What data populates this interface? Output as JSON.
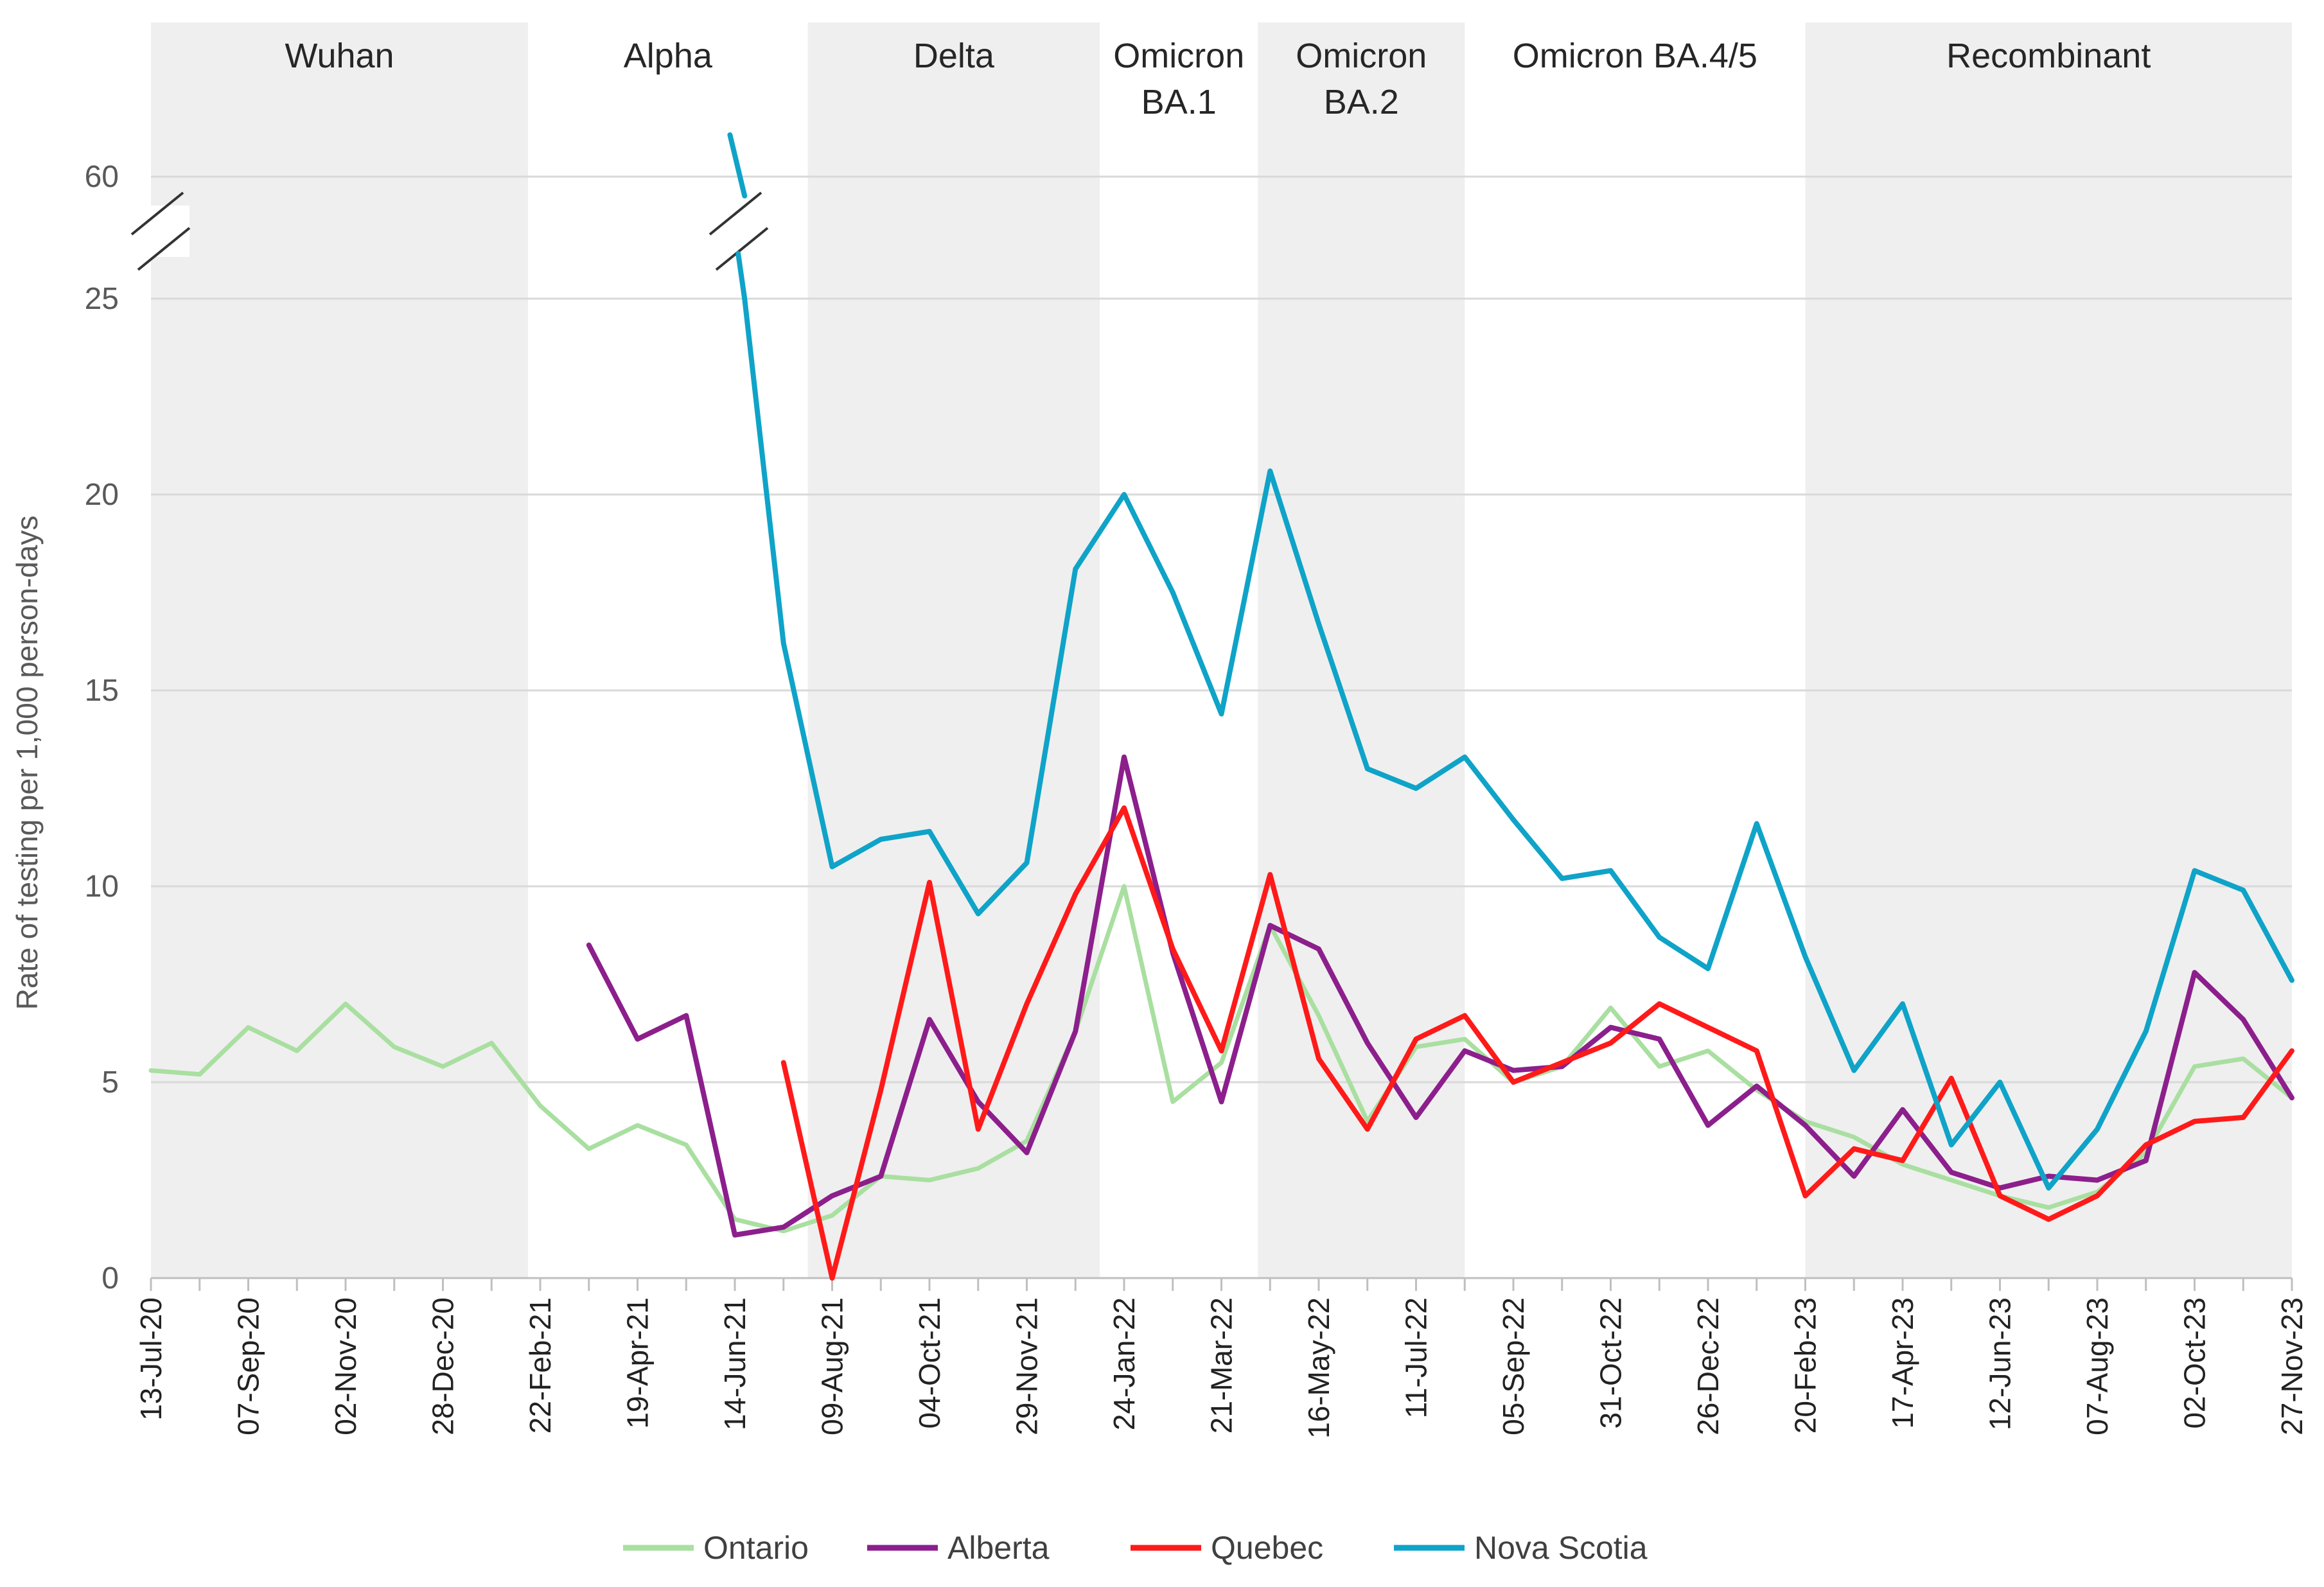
{
  "chart_data": {
    "type": "line",
    "title": "",
    "xlabel": "",
    "ylabel": "Rate of testing per 1,000 person-days",
    "y_ticks": [
      "0",
      "5",
      "10",
      "15",
      "20",
      "25",
      "60"
    ],
    "y_axis_break": "between 25 and 60",
    "legend_position": "bottom",
    "colors": {
      "Ontario": "#a9dfa0",
      "Alberta": "#8c1f8c",
      "Quebec": "#ff1a1a",
      "Nova Scotia": "#0fa3c8",
      "band": "#efefef",
      "grid": "#d9d9d9",
      "axis": "#bfbfbf"
    },
    "periods": [
      {
        "label_lines": [
          "Wuhan"
        ],
        "start": 0,
        "end": 7.75,
        "shaded": true
      },
      {
        "label_lines": [
          "Alpha"
        ],
        "start": 7.75,
        "end": 13.5,
        "shaded": false
      },
      {
        "label_lines": [
          "Delta"
        ],
        "start": 13.5,
        "end": 19.5,
        "shaded": true
      },
      {
        "label_lines": [
          "Omicron",
          "BA.1"
        ],
        "start": 19.5,
        "end": 22.75,
        "shaded": false
      },
      {
        "label_lines": [
          "Omicron",
          "BA.2"
        ],
        "start": 22.75,
        "end": 27,
        "shaded": true
      },
      {
        "label_lines": [
          "Omicron BA.4/5"
        ],
        "start": 27,
        "end": 34,
        "shaded": false
      },
      {
        "label_lines": [
          "Recombinant"
        ],
        "start": 34,
        "end": 44,
        "shaded": true
      }
    ],
    "x_tick_labels": [
      "13-Jul-20",
      "07-Sep-20",
      "02-Nov-20",
      "28-Dec-20",
      "22-Feb-21",
      "19-Apr-21",
      "14-Jun-21",
      "09-Aug-21",
      "04-Oct-21",
      "29-Nov-21",
      "24-Jan-22",
      "21-Mar-22",
      "16-May-22",
      "11-Jul-22",
      "05-Sep-22",
      "31-Oct-22",
      "26-Dec-22",
      "20-Feb-23",
      "17-Apr-23",
      "12-Jun-23",
      "07-Aug-23",
      "02-Oct-23",
      "27-Nov-23"
    ],
    "x_tick_positions": [
      0,
      2,
      4,
      6,
      8,
      10,
      12,
      14,
      16,
      18,
      20,
      22,
      24,
      26,
      28,
      30,
      32,
      34,
      36,
      38,
      40,
      42,
      44
    ],
    "series": [
      {
        "name": "Ontario",
        "points": [
          [
            0,
            5.3
          ],
          [
            1,
            5.2
          ],
          [
            2,
            6.4
          ],
          [
            3,
            5.8
          ],
          [
            4,
            7.0
          ],
          [
            5,
            5.9
          ],
          [
            6,
            5.4
          ],
          [
            7,
            6.0
          ],
          [
            8,
            4.4
          ],
          [
            9,
            3.3
          ],
          [
            10,
            3.9
          ],
          [
            11,
            3.4
          ],
          [
            12,
            1.5
          ],
          [
            13,
            1.2
          ],
          [
            14,
            1.6
          ],
          [
            15,
            2.6
          ],
          [
            16,
            2.5
          ],
          [
            17,
            2.8
          ],
          [
            18,
            3.5
          ],
          [
            19,
            6.3
          ],
          [
            20,
            10.0
          ],
          [
            21,
            4.5
          ],
          [
            22,
            5.5
          ],
          [
            23,
            9.0
          ],
          [
            24,
            6.7
          ],
          [
            25,
            4.0
          ],
          [
            26,
            5.9
          ],
          [
            27,
            6.1
          ],
          [
            28,
            5.0
          ],
          [
            29,
            5.4
          ],
          [
            30,
            6.9
          ],
          [
            31,
            5.4
          ],
          [
            32,
            5.8
          ],
          [
            33,
            4.8
          ],
          [
            34,
            4.0
          ],
          [
            35,
            3.6
          ],
          [
            36,
            2.9
          ],
          [
            37,
            2.5
          ],
          [
            38,
            2.1
          ],
          [
            39,
            1.8
          ],
          [
            40,
            2.2
          ],
          [
            41,
            3.2
          ],
          [
            42,
            5.4
          ],
          [
            43,
            5.6
          ],
          [
            44,
            4.6
          ]
        ]
      },
      {
        "name": "Alberta",
        "points": [
          [
            9,
            8.5
          ],
          [
            10,
            6.1
          ],
          [
            11,
            6.7
          ],
          [
            12,
            1.1
          ],
          [
            13,
            1.3
          ],
          [
            14,
            2.1
          ],
          [
            15,
            2.6
          ],
          [
            16,
            6.6
          ],
          [
            17,
            4.5
          ],
          [
            18,
            3.2
          ],
          [
            19,
            6.3
          ],
          [
            20,
            13.3
          ],
          [
            21,
            8.3
          ],
          [
            22,
            4.5
          ],
          [
            23,
            9.0
          ],
          [
            24,
            8.4
          ],
          [
            25,
            6.0
          ],
          [
            26,
            4.1
          ],
          [
            27,
            5.8
          ],
          [
            28,
            5.3
          ],
          [
            29,
            5.4
          ],
          [
            30,
            6.4
          ],
          [
            31,
            6.1
          ],
          [
            32,
            3.9
          ],
          [
            33,
            4.9
          ],
          [
            34,
            3.9
          ],
          [
            35,
            2.6
          ],
          [
            36,
            4.3
          ],
          [
            37,
            2.7
          ],
          [
            38,
            2.3
          ],
          [
            39,
            2.6
          ],
          [
            40,
            2.5
          ],
          [
            41,
            3.0
          ],
          [
            42,
            7.8
          ],
          [
            43,
            6.6
          ],
          [
            44,
            4.6
          ]
        ]
      },
      {
        "name": "Quebec",
        "points": [
          [
            13,
            5.5
          ],
          [
            14,
            0.0
          ],
          [
            15,
            4.8
          ],
          [
            16,
            10.1
          ],
          [
            17,
            3.8
          ],
          [
            18,
            7.0
          ],
          [
            19,
            9.8
          ],
          [
            20,
            12.0
          ],
          [
            21,
            8.4
          ],
          [
            22,
            5.8
          ],
          [
            23,
            10.3
          ],
          [
            24,
            5.6
          ],
          [
            25,
            3.8
          ],
          [
            26,
            6.1
          ],
          [
            27,
            6.7
          ],
          [
            28,
            5.0
          ],
          [
            29,
            5.5
          ],
          [
            30,
            6.0
          ],
          [
            31,
            7.0
          ],
          [
            32,
            6.4
          ],
          [
            33,
            5.8
          ],
          [
            34,
            2.1
          ],
          [
            35,
            3.3
          ],
          [
            36,
            3.0
          ],
          [
            37,
            5.1
          ],
          [
            38,
            2.1
          ],
          [
            39,
            1.5
          ],
          [
            40,
            2.1
          ],
          [
            41,
            3.4
          ],
          [
            42,
            4.0
          ],
          [
            43,
            4.1
          ],
          [
            44,
            5.8
          ]
        ]
      },
      {
        "name": "Nova Scotia",
        "break_values_above_25": {
          "start_x": 11.9,
          "start_value_label": "60",
          "end_x": 12.2
        },
        "points": [
          [
            12.2,
            25.0
          ],
          [
            13,
            16.2
          ],
          [
            14,
            10.5
          ],
          [
            15,
            11.2
          ],
          [
            16,
            11.4
          ],
          [
            17,
            9.3
          ],
          [
            18,
            10.6
          ],
          [
            19,
            18.1
          ],
          [
            20,
            20.0
          ],
          [
            21,
            17.5
          ],
          [
            22,
            14.4
          ],
          [
            23,
            20.6
          ],
          [
            24,
            16.7
          ],
          [
            25,
            13.0
          ],
          [
            26,
            12.5
          ],
          [
            27,
            13.3
          ],
          [
            28,
            11.7
          ],
          [
            29,
            10.2
          ],
          [
            30,
            10.4
          ],
          [
            31,
            8.7
          ],
          [
            32,
            7.9
          ],
          [
            33,
            11.6
          ],
          [
            34,
            8.2
          ],
          [
            35,
            5.3
          ],
          [
            36,
            7.0
          ],
          [
            37,
            3.4
          ],
          [
            38,
            5.0
          ],
          [
            39,
            2.3
          ],
          [
            40,
            3.8
          ],
          [
            41,
            6.3
          ],
          [
            42,
            10.4
          ],
          [
            43,
            9.9
          ],
          [
            44,
            7.6
          ]
        ]
      }
    ]
  },
  "legend": {
    "items": [
      {
        "label": "Ontario",
        "color": "#a9dfa0"
      },
      {
        "label": "Alberta",
        "color": "#8c1f8c"
      },
      {
        "label": "Quebec",
        "color": "#ff1a1a"
      },
      {
        "label": "Nova Scotia",
        "color": "#0fa3c8"
      }
    ]
  }
}
